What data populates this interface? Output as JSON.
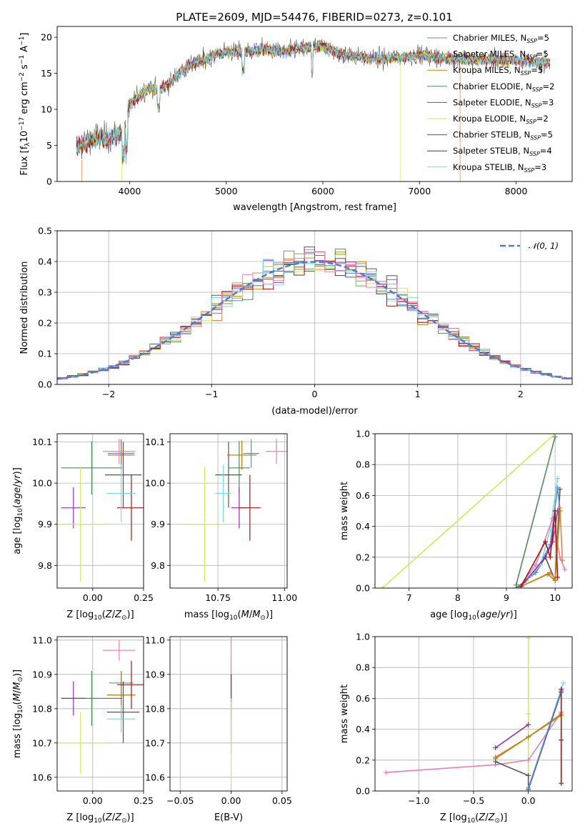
{
  "title": "PLATE=2609, MJD=54476, FIBERID=0273, z=0.101",
  "colors": {
    "blue": "#5b8bd6",
    "orange": "#dd8452",
    "olive": "#b8860b",
    "green": "#4e8b5f",
    "purple": "#8f2fa8",
    "yellow": "#cfe85a",
    "gray": "#555555",
    "red": "#a31515",
    "cyan": "#7fd6e3",
    "pink": "#e37fb8",
    "grid": "#b0b0b0",
    "normal": "#4a7fd0"
  },
  "chart_data": [
    {
      "id": "spectrum",
      "type": "line",
      "xlabel": "wavelength [Angstrom, rest frame]",
      "ylabel": "Flux [fλ10⁻¹⁷ erg cm⁻² s⁻¹ A⁻¹]",
      "xlim": [
        3250,
        8580
      ],
      "ylim": [
        0,
        21.5
      ],
      "xticks": [
        4000,
        5000,
        6000,
        7000,
        8000
      ],
      "yticks": [
        0,
        5,
        10,
        15,
        20
      ],
      "grid": false,
      "legend_position": "right",
      "continuum": {
        "x": [
          3450,
          3550,
          3650,
          3750,
          3850,
          3950,
          4000,
          4100,
          4200,
          4300,
          4400,
          4500,
          4600,
          4700,
          4800,
          4900,
          5000,
          5200,
          5400,
          5600,
          5800,
          6000,
          6200,
          6400,
          6600,
          6800,
          7000,
          7200,
          7400,
          7600,
          7800,
          8000,
          8200,
          8350
        ],
        "y": [
          4.8,
          5.5,
          6.2,
          5.8,
          6.4,
          7.2,
          10.5,
          12.0,
          13.0,
          12.6,
          13.5,
          14.8,
          16.0,
          16.5,
          17.0,
          17.6,
          18.0,
          18.0,
          18.3,
          18.0,
          18.5,
          18.8,
          17.6,
          17.2,
          17.0,
          17.2,
          17.6,
          17.2,
          17.0,
          16.9,
          16.9,
          16.8,
          16.6,
          16.4
        ]
      },
      "models": [
        {
          "name": "Chabrier MILES, N$_{SSP}$=5",
          "label": "Chabrier MILES, N",
          "sub": "SSP",
          "n": "=5",
          "color": "blue"
        },
        {
          "name": "Salpeter MILES, N$_{SSP}$=5",
          "label": "Salpeter MILES, N",
          "sub": "SSP",
          "n": "=5",
          "color": "orange"
        },
        {
          "name": "Kroupa MILES, N$_{SSP}$=5",
          "label": "Kroupa MILES, N",
          "sub": "SSP",
          "n": "=5",
          "color": "olive"
        },
        {
          "name": "Chabrier ELODIE, N$_{SSP}$=2",
          "label": "Chabrier ELODIE, N",
          "sub": "SSP",
          "n": "=2",
          "color": "green"
        },
        {
          "name": "Salpeter ELODIE, N$_{SSP}$=3",
          "label": "Salpeter ELODIE, N",
          "sub": "SSP",
          "n": "=3",
          "color": "purple"
        },
        {
          "name": "Kroupa ELODIE, N$_{SSP}$=2",
          "label": "Kroupa ELODIE, N",
          "sub": "SSP",
          "n": "=2",
          "color": "yellow"
        },
        {
          "name": "Chabrier STELIB, N$_{SSP}$=5",
          "label": "Chabrier STELIB, N",
          "sub": "SSP",
          "n": "=5",
          "color": "gray"
        },
        {
          "name": "Salpeter STELIB, N$_{SSP}$=4",
          "label": "Salpeter STELIB, N",
          "sub": "SSP",
          "n": "=4",
          "color": "red"
        },
        {
          "name": "Kroupa STELIB, N$_{SSP}$=3",
          "label": "Kroupa STELIB, N",
          "sub": "SSP",
          "n": "=3",
          "color": "cyan"
        }
      ]
    },
    {
      "id": "residuals",
      "type": "histogram",
      "xlabel": "(data-model)/error",
      "ylabel": "Normed distribution",
      "xlim": [
        -2.5,
        2.5
      ],
      "ylim": [
        0,
        0.5
      ],
      "xticks": [
        -2,
        -1,
        0,
        1,
        2
      ],
      "xtick_labels": [
        "−2",
        "−1",
        "0",
        "1",
        "2"
      ],
      "yticks": [
        0.0,
        0.1,
        0.2,
        0.3,
        0.4,
        0.5
      ],
      "grid": true,
      "legend": "𝒩(0, 1)",
      "legend_position": "top-right",
      "bin_width": 0.1
    },
    {
      "id": "age-vs-Z",
      "type": "scatter",
      "xlabel": "Z [log₁₀(Z/Z⊙)]",
      "ylabel": "age  [log₁₀(age/yr)]",
      "xlim": [
        -0.175,
        0.25
      ],
      "ylim": [
        9.745,
        10.12
      ],
      "xticks": [
        0.0,
        0.25
      ],
      "xtick_labels": [
        "0.00",
        "0.25"
      ],
      "yticks": [
        9.8,
        9.9,
        10.0,
        10.1
      ],
      "grid": true,
      "points": [
        {
          "color": "blue",
          "x": 0.14,
          "y": 10.072,
          "xerr": 0.065,
          "yerr": 0.035
        },
        {
          "color": "orange",
          "x": 0.14,
          "y": 10.068,
          "xerr": 0.065,
          "yerr": 0.035
        },
        {
          "color": "olive",
          "x": 0.14,
          "y": 10.068,
          "xerr": 0.065,
          "yerr": 0.035
        },
        {
          "color": "green",
          "x": -0.005,
          "y": 10.037,
          "xerr": 0.15,
          "yerr": 0.065
        },
        {
          "color": "purple",
          "x": -0.095,
          "y": 9.94,
          "xerr": 0.06,
          "yerr": 0.05
        },
        {
          "color": "yellow",
          "x": -0.06,
          "y": 9.9,
          "xerr": 0.13,
          "yerr": 0.14
        },
        {
          "color": "gray",
          "x": 0.15,
          "y": 10.02,
          "xerr": 0.09,
          "yerr": 0.08
        },
        {
          "color": "red",
          "x": 0.19,
          "y": 9.94,
          "xerr": 0.07,
          "yerr": 0.08
        },
        {
          "color": "cyan",
          "x": 0.14,
          "y": 9.975,
          "xerr": 0.07,
          "yerr": 0.07
        },
        {
          "color": "pink",
          "x": 0.13,
          "y": 10.077,
          "xerr": 0.08,
          "yerr": 0.03
        }
      ]
    },
    {
      "id": "age-vs-mass",
      "type": "scatter",
      "xlabel": "mass [log₁₀(M/M⊙)]",
      "ylabel": "",
      "xlim": [
        10.57,
        11.01
      ],
      "ylim": [
        9.745,
        10.12
      ],
      "xticks": [
        10.75,
        11.0
      ],
      "xtick_labels": [
        "10.75",
        "11.00"
      ],
      "yticks": [
        9.8,
        9.9,
        10.0,
        10.1
      ],
      "grid": true,
      "points": [
        {
          "color": "blue",
          "x": 10.875,
          "y": 10.072,
          "xerr": 0.03,
          "yerr": 0.035
        },
        {
          "color": "orange",
          "x": 10.84,
          "y": 10.068,
          "xerr": 0.055,
          "yerr": 0.035
        },
        {
          "color": "olive",
          "x": 10.84,
          "y": 10.068,
          "xerr": 0.055,
          "yerr": 0.035
        },
        {
          "color": "green",
          "x": 10.83,
          "y": 10.037,
          "xerr": 0.04,
          "yerr": 0.065
        },
        {
          "color": "purple",
          "x": 10.83,
          "y": 9.94,
          "xerr": 0.03,
          "yerr": 0.05
        },
        {
          "color": "yellow",
          "x": 10.7,
          "y": 9.9,
          "xerr": 0.08,
          "yerr": 0.14
        },
        {
          "color": "gray",
          "x": 10.79,
          "y": 10.02,
          "xerr": 0.05,
          "yerr": 0.08
        },
        {
          "color": "red",
          "x": 10.87,
          "y": 9.94,
          "xerr": 0.04,
          "yerr": 0.08
        },
        {
          "color": "cyan",
          "x": 10.77,
          "y": 9.975,
          "xerr": 0.03,
          "yerr": 0.07
        },
        {
          "color": "pink",
          "x": 10.97,
          "y": 10.077,
          "xerr": 0.04,
          "yerr": 0.03
        }
      ]
    },
    {
      "id": "mass-weight-vs-age",
      "type": "line",
      "xlabel": "age  [log₁₀(age/yr)]",
      "ylabel": "mass weight",
      "xlim": [
        6.3,
        10.35
      ],
      "ylim": [
        0,
        1.0
      ],
      "xticks": [
        7,
        8,
        9,
        10
      ],
      "yticks": [
        0.0,
        0.2,
        0.4,
        0.6,
        0.8,
        1.0
      ],
      "grid": true,
      "series": [
        {
          "color": "yellow",
          "x": [
            6.45,
            10.0
          ],
          "y": [
            0.0,
            1.0
          ]
        },
        {
          "color": "green",
          "x": [
            9.2,
            10.0
          ],
          "y": [
            0.02,
            0.98
          ]
        },
        {
          "color": "gray",
          "x": [
            9.2,
            9.4,
            9.6,
            9.8,
            10.0,
            10.1
          ],
          "y": [
            0.0,
            0.05,
            0.1,
            0.2,
            0.05,
            0.64
          ]
        },
        {
          "color": "blue",
          "x": [
            9.25,
            9.6,
            9.9,
            10.05,
            10.1
          ],
          "y": [
            0.01,
            0.1,
            0.28,
            0.65,
            0.5
          ]
        },
        {
          "color": "cyan",
          "x": [
            9.3,
            9.7,
            9.9,
            10.05
          ],
          "y": [
            0.01,
            0.15,
            0.38,
            0.71
          ]
        },
        {
          "color": "purple",
          "x": [
            9.3,
            9.8,
            9.95,
            10.05
          ],
          "y": [
            0.01,
            0.2,
            0.3,
            0.5
          ]
        },
        {
          "color": "pink",
          "x": [
            9.25,
            9.6,
            9.95,
            10.1,
            10.2
          ],
          "y": [
            0.0,
            0.15,
            0.45,
            0.2,
            0.12
          ]
        },
        {
          "color": "orange",
          "x": [
            9.3,
            9.9,
            10.0,
            10.1,
            10.15
          ],
          "y": [
            0.01,
            0.1,
            0.06,
            0.52,
            0.18
          ]
        },
        {
          "color": "olive",
          "x": [
            9.3,
            9.85,
            10.0,
            10.1
          ],
          "y": [
            0.01,
            0.09,
            0.05,
            0.5
          ]
        },
        {
          "color": "red",
          "x": [
            9.3,
            9.8,
            9.9,
            10.0,
            10.05
          ],
          "y": [
            0.01,
            0.3,
            0.2,
            0.5,
            0.07
          ]
        }
      ]
    },
    {
      "id": "mass-vs-Z",
      "type": "scatter",
      "xlabel": "Z [log₁₀(Z/Z⊙)]",
      "ylabel": "mass [log₁₀(M/M⊙)]",
      "xlim": [
        -0.175,
        0.25
      ],
      "ylim": [
        10.56,
        11.01
      ],
      "xticks": [
        0.0,
        0.25
      ],
      "xtick_labels": [
        "0.00",
        "0.25"
      ],
      "yticks": [
        10.6,
        10.7,
        10.8,
        10.9,
        11.0
      ],
      "grid": true,
      "points": [
        {
          "color": "blue",
          "x": 0.14,
          "y": 10.875,
          "xerr": 0.06,
          "yerr": 0.035
        },
        {
          "color": "orange",
          "x": 0.14,
          "y": 10.84,
          "xerr": 0.07,
          "yerr": 0.07
        },
        {
          "color": "olive",
          "x": 0.14,
          "y": 10.84,
          "xerr": 0.07,
          "yerr": 0.07
        },
        {
          "color": "green",
          "x": -0.005,
          "y": 10.83,
          "xerr": 0.15,
          "yerr": 0.08
        },
        {
          "color": "purple",
          "x": -0.095,
          "y": 10.83,
          "xerr": 0.06,
          "yerr": 0.05
        },
        {
          "color": "yellow",
          "x": -0.06,
          "y": 10.7,
          "xerr": 0.13,
          "yerr": 0.09
        },
        {
          "color": "gray",
          "x": 0.15,
          "y": 10.79,
          "xerr": 0.08,
          "yerr": 0.09
        },
        {
          "color": "red",
          "x": 0.19,
          "y": 10.87,
          "xerr": 0.07,
          "yerr": 0.07
        },
        {
          "color": "cyan",
          "x": 0.14,
          "y": 10.77,
          "xerr": 0.07,
          "yerr": 0.04
        },
        {
          "color": "pink",
          "x": 0.13,
          "y": 10.97,
          "xerr": 0.08,
          "yerr": 0.03
        }
      ]
    },
    {
      "id": "mass-vs-EBV",
      "type": "scatter",
      "xlabel": "E(B-V)",
      "ylabel": "",
      "xlim": [
        -0.06,
        0.055
      ],
      "ylim": [
        10.56,
        11.01
      ],
      "xticks": [
        -0.05,
        0.0,
        0.05
      ],
      "xtick_labels": [
        "−0.05",
        "0.00",
        "0.05"
      ],
      "yticks": [
        10.6,
        10.7,
        10.8,
        10.9,
        11.0
      ],
      "grid": true,
      "points": [
        {
          "color": "pink",
          "x": 0.0,
          "y": 10.92,
          "xerr": 0.0,
          "yerr": 0.09
        },
        {
          "color": "red",
          "x": 0.0,
          "y": 10.83,
          "xerr": 0.0,
          "yerr": 0.07
        },
        {
          "color": "gray",
          "x": 0.0,
          "y": 10.78,
          "xerr": 0.0,
          "yerr": 0.11
        },
        {
          "color": "cyan",
          "x": 0.0,
          "y": 10.77,
          "xerr": 0.0,
          "yerr": 0.06
        },
        {
          "color": "yellow",
          "x": 0.0,
          "y": 10.7,
          "xerr": 0.0,
          "yerr": 0.12
        }
      ]
    },
    {
      "id": "mass-weight-vs-Z",
      "type": "line",
      "xlabel": "Z [log₁₀(Z/Z⊙)]",
      "ylabel": "mass weight",
      "xlim": [
        -1.4,
        0.4
      ],
      "ylim": [
        0,
        1.0
      ],
      "xticks": [
        -1.0,
        -0.5,
        0.0
      ],
      "xtick_labels": [
        "−1.0",
        "−0.5",
        "0.0"
      ],
      "yticks": [
        0.0,
        0.2,
        0.4,
        0.6,
        0.8,
        1.0
      ],
      "grid": true,
      "series": [
        {
          "color": "yellow",
          "x": [
            0.0,
            0.0,
            0.0
          ],
          "y": [
            0.0,
            0.5,
            0.99
          ]
        },
        {
          "color": "pink",
          "x": [
            -1.3,
            -0.3,
            0.0,
            0.3
          ],
          "y": [
            0.12,
            0.17,
            0.2,
            0.51
          ]
        },
        {
          "color": "cyan",
          "x": [
            0.0,
            0.32
          ],
          "y": [
            0.01,
            0.7
          ]
        },
        {
          "color": "purple",
          "x": [
            -0.3,
            0.0
          ],
          "y": [
            0.28,
            0.43
          ]
        },
        {
          "color": "orange",
          "x": [
            -0.3,
            0.0,
            0.3
          ],
          "y": [
            0.22,
            0.35,
            0.5
          ]
        },
        {
          "color": "olive",
          "x": [
            -0.3,
            0.0,
            0.3
          ],
          "y": [
            0.21,
            0.35,
            0.49
          ]
        },
        {
          "color": "gray",
          "x": [
            -0.3,
            0.0,
            0.0,
            0.3
          ],
          "y": [
            0.19,
            0.1,
            0.01,
            0.64
          ]
        },
        {
          "color": "blue",
          "x": [
            0.0,
            0.3
          ],
          "y": [
            0.02,
            0.65
          ]
        },
        {
          "color": "red",
          "x": [
            0.3,
            0.3,
            0.3
          ],
          "y": [
            0.66,
            0.33,
            0.05
          ]
        }
      ]
    }
  ]
}
